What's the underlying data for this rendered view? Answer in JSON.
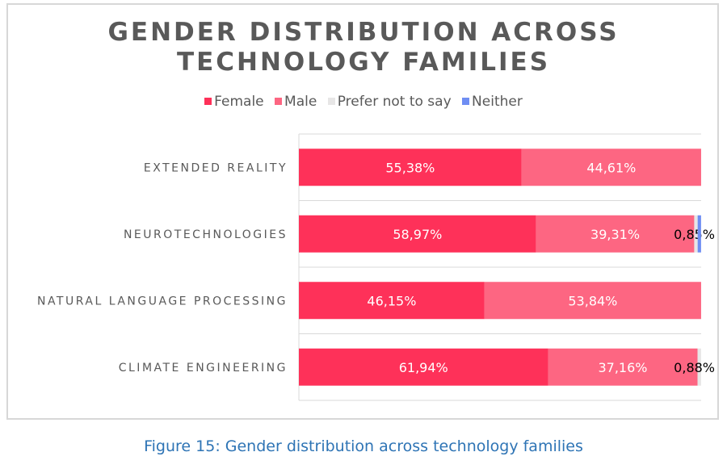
{
  "chart_data": {
    "type": "bar",
    "orientation": "horizontal",
    "stacked": true,
    "title_lines": [
      "GENDER DISTRIBUTION ACROSS",
      "TECHNOLOGY FAMILIES"
    ],
    "legend_position": "top",
    "categories": [
      "EXTENDED REALITY",
      "NEUROTECHNOLOGIES",
      "NATURAL LANGUAGE PROCESSING",
      "CLIMATE ENGINEERING"
    ],
    "series": [
      {
        "name": "Female",
        "color": "#fe3159",
        "values": [
          55.38,
          58.97,
          46.15,
          61.94
        ],
        "labels": [
          "55,38%",
          "58,97%",
          "46,15%",
          "61,94%"
        ]
      },
      {
        "name": "Male",
        "color": "#fd6682",
        "values": [
          44.61,
          39.31,
          53.84,
          37.16
        ],
        "labels": [
          "44,61%",
          "39,31%",
          "53,84%",
          "37,16%"
        ]
      },
      {
        "name": "Prefer not to say",
        "color": "#e7e6e6",
        "values": [
          0,
          0.85,
          0,
          0.88
        ],
        "labels": [
          "",
          "0,85%",
          "",
          "0,88%"
        ]
      },
      {
        "name": "Neither",
        "color": "#6f8ef3",
        "values": [
          0,
          0.85,
          0,
          0
        ],
        "labels": [
          "",
          "",
          "",
          ""
        ]
      }
    ],
    "xlim": [
      0,
      100
    ],
    "grid": true
  },
  "caption": "Figure 15: Gender distribution across technology families"
}
